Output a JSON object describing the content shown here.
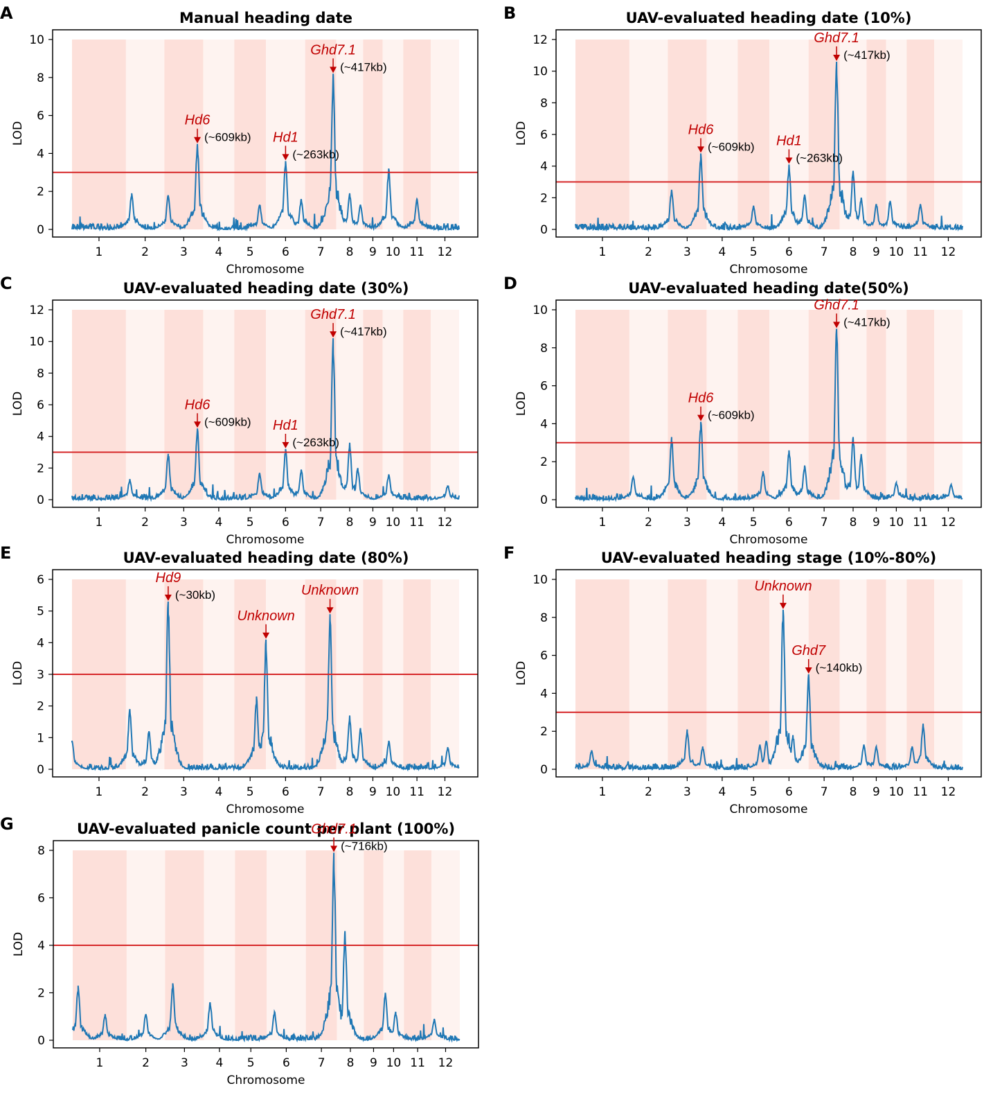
{
  "figure": {
    "xlabel": "Chromosome",
    "ylabel": "LOD",
    "colors": {
      "line": "#1f77b4",
      "threshold": "#d62728",
      "annotation": "#c00000",
      "band_dark": "#fde0da",
      "band_light": "#fef3f0"
    }
  },
  "chart_data": [
    {
      "panel": "A",
      "type": "line",
      "title": "Manual heading date",
      "xlabel": "Chromosome",
      "ylabel": "LOD",
      "categories": [
        "1",
        "2",
        "3",
        "4",
        "5",
        "6",
        "7",
        "8",
        "9",
        "10",
        "11",
        "12"
      ],
      "ylim": [
        0,
        10
      ],
      "yticks": [
        0,
        2,
        4,
        6,
        8,
        10
      ],
      "threshold": 3,
      "peaks": [
        {
          "chr": 2,
          "pos": 0.15,
          "lod": 1.9
        },
        {
          "chr": 3,
          "pos": 0.1,
          "lod": 1.8
        },
        {
          "chr": 3,
          "pos": 0.85,
          "lod": 4.5
        },
        {
          "chr": 5,
          "pos": 0.8,
          "lod": 1.3
        },
        {
          "chr": 6,
          "pos": 0.5,
          "lod": 3.6
        },
        {
          "chr": 6,
          "pos": 0.9,
          "lod": 1.6
        },
        {
          "chr": 7,
          "pos": 0.9,
          "lod": 8.2
        },
        {
          "chr": 8,
          "pos": 0.5,
          "lod": 1.9
        },
        {
          "chr": 8,
          "pos": 0.9,
          "lod": 1.3
        },
        {
          "chr": 10,
          "pos": 0.3,
          "lod": 3.2
        },
        {
          "chr": 11,
          "pos": 0.5,
          "lod": 1.6
        }
      ],
      "annotations": [
        {
          "gene": "Hd6",
          "note": "(~609kb)",
          "chr": 3,
          "pos": 0.85,
          "lod": 4.5
        },
        {
          "gene": "Hd1",
          "note": "(~263kb)",
          "chr": 6,
          "pos": 0.5,
          "lod": 3.6
        },
        {
          "gene": "Ghd7.1",
          "note": "(~417kb)",
          "chr": 7,
          "pos": 0.9,
          "lod": 8.2
        }
      ]
    },
    {
      "panel": "B",
      "type": "line",
      "title": "UAV-evaluated heading date (10%)",
      "xlabel": "Chromosome",
      "ylabel": "LOD",
      "categories": [
        "1",
        "2",
        "3",
        "4",
        "5",
        "6",
        "7",
        "8",
        "9",
        "10",
        "11",
        "12"
      ],
      "ylim": [
        0,
        12
      ],
      "yticks": [
        0,
        2,
        4,
        6,
        8,
        10,
        12
      ],
      "threshold": 3,
      "peaks": [
        {
          "chr": 3,
          "pos": 0.1,
          "lod": 2.5
        },
        {
          "chr": 3,
          "pos": 0.85,
          "lod": 4.8
        },
        {
          "chr": 5,
          "pos": 0.5,
          "lod": 1.5
        },
        {
          "chr": 6,
          "pos": 0.5,
          "lod": 4.1
        },
        {
          "chr": 6,
          "pos": 0.9,
          "lod": 2.2
        },
        {
          "chr": 7,
          "pos": 0.9,
          "lod": 10.6
        },
        {
          "chr": 8,
          "pos": 0.5,
          "lod": 3.7
        },
        {
          "chr": 8,
          "pos": 0.8,
          "lod": 2.0
        },
        {
          "chr": 9,
          "pos": 0.5,
          "lod": 1.6
        },
        {
          "chr": 10,
          "pos": 0.2,
          "lod": 1.8
        },
        {
          "chr": 11,
          "pos": 0.5,
          "lod": 1.6
        }
      ],
      "annotations": [
        {
          "gene": "Hd6",
          "note": "(~609kb)",
          "chr": 3,
          "pos": 0.85,
          "lod": 4.8
        },
        {
          "gene": "Hd1",
          "note": "(~263kb)",
          "chr": 6,
          "pos": 0.5,
          "lod": 4.1
        },
        {
          "gene": "Ghd7.1",
          "note": "(~417kb)",
          "chr": 7,
          "pos": 0.9,
          "lod": 10.6
        }
      ]
    },
    {
      "panel": "C",
      "type": "line",
      "title": "UAV-evaluated heading date (30%)",
      "xlabel": "Chromosome",
      "ylabel": "LOD",
      "categories": [
        "1",
        "2",
        "3",
        "4",
        "5",
        "6",
        "7",
        "8",
        "9",
        "10",
        "11",
        "12"
      ],
      "ylim": [
        0,
        12
      ],
      "yticks": [
        0,
        2,
        4,
        6,
        8,
        10,
        12
      ],
      "threshold": 3,
      "peaks": [
        {
          "chr": 2,
          "pos": 0.1,
          "lod": 1.3
        },
        {
          "chr": 3,
          "pos": 0.1,
          "lod": 2.9
        },
        {
          "chr": 3,
          "pos": 0.85,
          "lod": 4.5
        },
        {
          "chr": 5,
          "pos": 0.8,
          "lod": 1.7
        },
        {
          "chr": 6,
          "pos": 0.5,
          "lod": 3.2
        },
        {
          "chr": 6,
          "pos": 0.9,
          "lod": 1.9
        },
        {
          "chr": 7,
          "pos": 0.9,
          "lod": 10.2
        },
        {
          "chr": 8,
          "pos": 0.5,
          "lod": 3.6
        },
        {
          "chr": 8,
          "pos": 0.8,
          "lod": 2.0
        },
        {
          "chr": 10,
          "pos": 0.3,
          "lod": 1.6
        },
        {
          "chr": 12,
          "pos": 0.6,
          "lod": 0.9
        }
      ],
      "annotations": [
        {
          "gene": "Hd6",
          "note": "(~609kb)",
          "chr": 3,
          "pos": 0.85,
          "lod": 4.5
        },
        {
          "gene": "Hd1",
          "note": "(~263kb)",
          "chr": 6,
          "pos": 0.5,
          "lod": 3.2
        },
        {
          "gene": "Ghd7.1",
          "note": "(~417kb)",
          "chr": 7,
          "pos": 0.9,
          "lod": 10.2
        }
      ]
    },
    {
      "panel": "D",
      "type": "line",
      "title": "UAV-evaluated heading date(50%)",
      "xlabel": "Chromosome",
      "ylabel": "LOD",
      "categories": [
        "1",
        "2",
        "3",
        "4",
        "5",
        "6",
        "7",
        "8",
        "9",
        "10",
        "11",
        "12"
      ],
      "ylim": [
        0,
        10
      ],
      "yticks": [
        0,
        2,
        4,
        6,
        8,
        10
      ],
      "threshold": 3,
      "peaks": [
        {
          "chr": 2,
          "pos": 0.1,
          "lod": 1.2
        },
        {
          "chr": 3,
          "pos": 0.1,
          "lod": 3.3
        },
        {
          "chr": 3,
          "pos": 0.85,
          "lod": 4.1
        },
        {
          "chr": 5,
          "pos": 0.8,
          "lod": 1.5
        },
        {
          "chr": 6,
          "pos": 0.5,
          "lod": 2.6
        },
        {
          "chr": 6,
          "pos": 0.9,
          "lod": 1.8
        },
        {
          "chr": 7,
          "pos": 0.9,
          "lod": 9.0
        },
        {
          "chr": 8,
          "pos": 0.5,
          "lod": 3.3
        },
        {
          "chr": 8,
          "pos": 0.8,
          "lod": 2.4
        },
        {
          "chr": 10,
          "pos": 0.5,
          "lod": 0.9
        },
        {
          "chr": 12,
          "pos": 0.6,
          "lod": 0.8
        }
      ],
      "annotations": [
        {
          "gene": "Hd6",
          "note": "(~609kb)",
          "chr": 3,
          "pos": 0.85,
          "lod": 4.1
        },
        {
          "gene": "Ghd7.1",
          "note": "(~417kb)",
          "chr": 7,
          "pos": 0.9,
          "lod": 9.0
        }
      ]
    },
    {
      "panel": "E",
      "type": "line",
      "title": "UAV-evaluated heading date (80%)",
      "xlabel": "Chromosome",
      "ylabel": "LOD",
      "categories": [
        "1",
        "2",
        "3",
        "4",
        "5",
        "6",
        "7",
        "8",
        "9",
        "10",
        "11",
        "12"
      ],
      "ylim": [
        0,
        6
      ],
      "yticks": [
        0,
        1,
        2,
        3,
        4,
        5,
        6
      ],
      "threshold": 3,
      "peaks": [
        {
          "chr": 1,
          "pos": 0.0,
          "lod": 0.9
        },
        {
          "chr": 2,
          "pos": 0.1,
          "lod": 1.9
        },
        {
          "chr": 2,
          "pos": 0.6,
          "lod": 1.2
        },
        {
          "chr": 3,
          "pos": 0.1,
          "lod": 5.3
        },
        {
          "chr": 5,
          "pos": 0.7,
          "lod": 2.3
        },
        {
          "chr": 6,
          "pos": 0.0,
          "lod": 4.1
        },
        {
          "chr": 7,
          "pos": 0.8,
          "lod": 4.9
        },
        {
          "chr": 8,
          "pos": 0.5,
          "lod": 1.7
        },
        {
          "chr": 8,
          "pos": 0.9,
          "lod": 1.3
        },
        {
          "chr": 10,
          "pos": 0.3,
          "lod": 0.9
        },
        {
          "chr": 12,
          "pos": 0.6,
          "lod": 0.7
        }
      ],
      "annotations": [
        {
          "gene": "Hd9",
          "note": "(~30kb)",
          "chr": 3,
          "pos": 0.1,
          "lod": 5.3
        },
        {
          "gene": "Unknown",
          "note": "",
          "chr": 6,
          "pos": 0.0,
          "lod": 4.1
        },
        {
          "gene": "Unknown",
          "note": "",
          "chr": 7,
          "pos": 0.8,
          "lod": 4.9
        }
      ]
    },
    {
      "panel": "F",
      "type": "line",
      "title": "UAV-evaluated heading stage (10%-80%)",
      "xlabel": "Chromosome",
      "ylabel": "LOD",
      "categories": [
        "1",
        "2",
        "3",
        "4",
        "5",
        "6",
        "7",
        "8",
        "9",
        "10",
        "11",
        "12"
      ],
      "ylim": [
        0,
        10
      ],
      "yticks": [
        0,
        2,
        4,
        6,
        8,
        10
      ],
      "threshold": 3,
      "peaks": [
        {
          "chr": 1,
          "pos": 0.3,
          "lod": 1.0
        },
        {
          "chr": 3,
          "pos": 0.5,
          "lod": 2.1
        },
        {
          "chr": 3,
          "pos": 0.9,
          "lod": 1.2
        },
        {
          "chr": 5,
          "pos": 0.7,
          "lod": 1.3
        },
        {
          "chr": 5,
          "pos": 0.9,
          "lod": 1.5
        },
        {
          "chr": 6,
          "pos": 0.35,
          "lod": 8.4
        },
        {
          "chr": 6,
          "pos": 0.6,
          "lod": 1.8
        },
        {
          "chr": 7,
          "pos": 0.0,
          "lod": 5.0
        },
        {
          "chr": 8,
          "pos": 0.9,
          "lod": 1.3
        },
        {
          "chr": 9,
          "pos": 0.5,
          "lod": 1.2
        },
        {
          "chr": 11,
          "pos": 0.2,
          "lod": 1.2
        },
        {
          "chr": 11,
          "pos": 0.6,
          "lod": 2.4
        }
      ],
      "annotations": [
        {
          "gene": "Unknown",
          "note": "",
          "chr": 6,
          "pos": 0.35,
          "lod": 8.4
        },
        {
          "gene": "Ghd7",
          "note": "(~140kb)",
          "chr": 7,
          "pos": 0.0,
          "lod": 5.0
        }
      ]
    },
    {
      "panel": "G",
      "type": "line",
      "title": "UAV-evaluated panicle count per plant (100%)",
      "xlabel": "Chromosome",
      "ylabel": "LOD",
      "categories": [
        "1",
        "2",
        "3",
        "4",
        "5",
        "6",
        "7",
        "8",
        "9",
        "10",
        "11",
        "12"
      ],
      "ylim": [
        0,
        8
      ],
      "yticks": [
        0,
        2,
        4,
        6,
        8
      ],
      "threshold": 4,
      "peaks": [
        {
          "chr": 1,
          "pos": 0.1,
          "lod": 2.3
        },
        {
          "chr": 1,
          "pos": 0.6,
          "lod": 1.1
        },
        {
          "chr": 2,
          "pos": 0.5,
          "lod": 1.1
        },
        {
          "chr": 3,
          "pos": 0.2,
          "lod": 2.4
        },
        {
          "chr": 4,
          "pos": 0.2,
          "lod": 1.6
        },
        {
          "chr": 6,
          "pos": 0.2,
          "lod": 1.2
        },
        {
          "chr": 7,
          "pos": 0.9,
          "lod": 7.9
        },
        {
          "chr": 8,
          "pos": 0.3,
          "lod": 4.6
        },
        {
          "chr": 10,
          "pos": 0.1,
          "lod": 2.0
        },
        {
          "chr": 10,
          "pos": 0.6,
          "lod": 1.2
        },
        {
          "chr": 12,
          "pos": 0.1,
          "lod": 0.9
        }
      ],
      "annotations": [
        {
          "gene": "Ghd7.1",
          "note": "(~716kb)",
          "chr": 7,
          "pos": 0.9,
          "lod": 7.9
        }
      ]
    }
  ]
}
